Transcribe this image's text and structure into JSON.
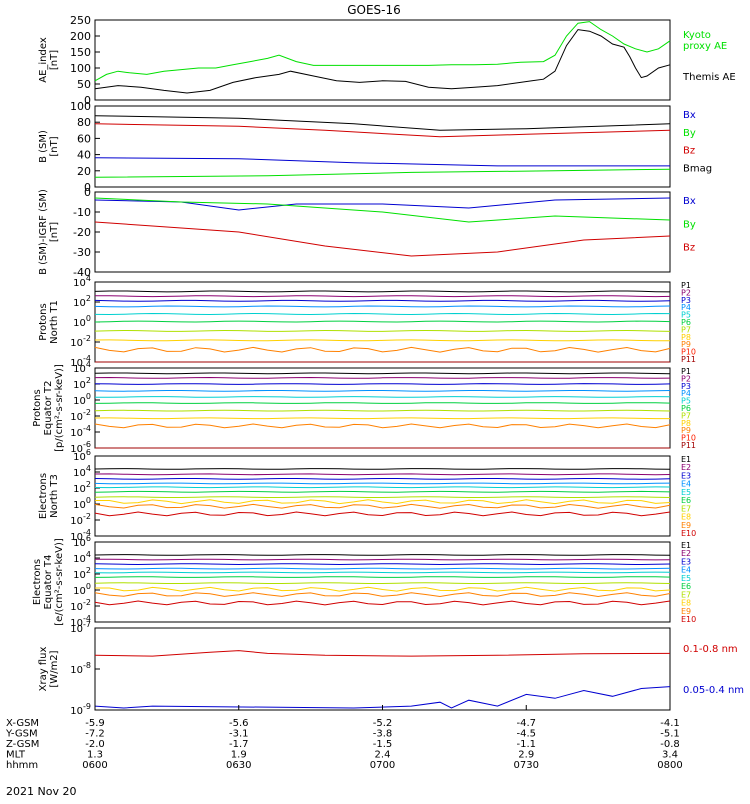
{
  "title": "GOES-16",
  "date_label": "2021 Nov 20",
  "colors": {
    "black": "#000000",
    "green": "#00e000",
    "red": "#d00000",
    "blue": "#0000d0"
  },
  "chart_data": [
    {
      "type": "line",
      "name": "ae",
      "ylabel_lines": [
        "AE_index",
        "[nT]"
      ],
      "yticks": [
        "250",
        "200",
        "150",
        "100",
        "50",
        "0"
      ],
      "ylim": [
        0,
        250
      ],
      "series": [
        {
          "name": "Kyoto proxy AE",
          "color": "#00e000",
          "label_lines": [
            "Kyoto",
            "proxy AE"
          ],
          "values": [
            [
              0,
              60
            ],
            [
              2,
              80
            ],
            [
              4,
              90
            ],
            [
              6,
              85
            ],
            [
              9,
              80
            ],
            [
              12,
              90
            ],
            [
              15,
              95
            ],
            [
              18,
              100
            ],
            [
              21,
              100
            ],
            [
              24,
              110
            ],
            [
              27,
              120
            ],
            [
              30,
              130
            ],
            [
              32,
              140
            ],
            [
              35,
              120
            ],
            [
              38,
              108
            ],
            [
              42,
              108
            ],
            [
              46,
              108
            ],
            [
              50,
              108
            ],
            [
              54,
              108
            ],
            [
              58,
              108
            ],
            [
              62,
              110
            ],
            [
              66,
              110
            ],
            [
              70,
              112
            ],
            [
              74,
              118
            ],
            [
              78,
              120
            ],
            [
              80,
              140
            ],
            [
              82,
              200
            ],
            [
              84,
              240
            ],
            [
              86,
              245
            ],
            [
              88,
              220
            ],
            [
              90,
              200
            ],
            [
              92,
              175
            ],
            [
              94,
              160
            ],
            [
              96,
              150
            ],
            [
              98,
              160
            ],
            [
              100,
              185
            ]
          ]
        },
        {
          "name": "Themis AE",
          "color": "#000000",
          "label_lines": [
            "Themis AE"
          ],
          "values": [
            [
              0,
              35
            ],
            [
              4,
              45
            ],
            [
              8,
              40
            ],
            [
              12,
              30
            ],
            [
              16,
              22
            ],
            [
              20,
              30
            ],
            [
              24,
              55
            ],
            [
              28,
              70
            ],
            [
              32,
              80
            ],
            [
              34,
              90
            ],
            [
              38,
              75
            ],
            [
              42,
              60
            ],
            [
              46,
              55
            ],
            [
              50,
              60
            ],
            [
              54,
              58
            ],
            [
              58,
              40
            ],
            [
              62,
              35
            ],
            [
              66,
              40
            ],
            [
              70,
              45
            ],
            [
              74,
              55
            ],
            [
              76,
              60
            ],
            [
              78,
              65
            ],
            [
              80,
              90
            ],
            [
              82,
              170
            ],
            [
              84,
              220
            ],
            [
              86,
              215
            ],
            [
              88,
              200
            ],
            [
              90,
              175
            ],
            [
              92,
              165
            ],
            [
              93,
              135
            ],
            [
              94,
              100
            ],
            [
              95,
              70
            ],
            [
              96,
              75
            ],
            [
              98,
              100
            ],
            [
              100,
              110
            ]
          ]
        }
      ]
    },
    {
      "type": "line",
      "name": "bsm",
      "ylabel_lines": [
        "B (SM)",
        "[nT]"
      ],
      "yticks": [
        "100",
        "80",
        "60",
        "40",
        "20",
        "0"
      ],
      "ylim": [
        0,
        100
      ],
      "series": [
        {
          "name": "Bx",
          "color": "#0000d0",
          "label_lines": [
            "Bx"
          ],
          "values": [
            [
              0,
              36
            ],
            [
              25,
              35
            ],
            [
              45,
              30
            ],
            [
              70,
              26
            ],
            [
              100,
              26
            ]
          ]
        },
        {
          "name": "By",
          "color": "#00e000",
          "label_lines": [
            "By"
          ],
          "values": [
            [
              0,
              12
            ],
            [
              30,
              14
            ],
            [
              55,
              18
            ],
            [
              80,
              20
            ],
            [
              100,
              22
            ]
          ]
        },
        {
          "name": "Bz",
          "color": "#d00000",
          "label_lines": [
            "Bz"
          ],
          "values": [
            [
              0,
              78
            ],
            [
              25,
              75
            ],
            [
              40,
              70
            ],
            [
              60,
              62
            ],
            [
              75,
              65
            ],
            [
              100,
              70
            ]
          ]
        },
        {
          "name": "Bmag",
          "color": "#000000",
          "label_lines": [
            "Bmag"
          ],
          "values": [
            [
              0,
              88
            ],
            [
              25,
              85
            ],
            [
              45,
              78
            ],
            [
              60,
              70
            ],
            [
              75,
              72
            ],
            [
              100,
              78
            ]
          ]
        }
      ]
    },
    {
      "type": "line",
      "name": "bigrf",
      "ylabel_lines": [
        "B (SM)-IGRF (SM)",
        "[nT]"
      ],
      "yticks": [
        "0",
        "-10",
        "-20",
        "-30",
        "-40"
      ],
      "ylim": [
        -40,
        0
      ],
      "series": [
        {
          "name": "Bx",
          "color": "#0000d0",
          "label_lines": [
            "Bx"
          ],
          "values": [
            [
              0,
              -4
            ],
            [
              15,
              -5
            ],
            [
              25,
              -9
            ],
            [
              35,
              -6
            ],
            [
              50,
              -6
            ],
            [
              65,
              -8
            ],
            [
              80,
              -4
            ],
            [
              100,
              -3
            ]
          ]
        },
        {
          "name": "By",
          "color": "#00e000",
          "label_lines": [
            "By"
          ],
          "values": [
            [
              0,
              -3
            ],
            [
              15,
              -5
            ],
            [
              30,
              -6
            ],
            [
              50,
              -10
            ],
            [
              65,
              -15
            ],
            [
              80,
              -12
            ],
            [
              100,
              -14
            ]
          ]
        },
        {
          "name": "Bz",
          "color": "#d00000",
          "label_lines": [
            "Bz"
          ],
          "values": [
            [
              0,
              -15
            ],
            [
              10,
              -17
            ],
            [
              25,
              -20
            ],
            [
              40,
              -27
            ],
            [
              55,
              -32
            ],
            [
              70,
              -30
            ],
            [
              85,
              -24
            ],
            [
              100,
              -22
            ]
          ]
        }
      ]
    },
    {
      "type": "line",
      "scale": "log",
      "name": "protons_t1",
      "ylabel_lines": [
        "Protons",
        "North T1"
      ],
      "yticks": [
        "10^4",
        "10^2",
        "10^0",
        "10^-2",
        "10^-4"
      ],
      "ylim": [
        -4.5,
        4
      ],
      "channels": [
        {
          "name": "P1",
          "color": "#000000",
          "level": 3.0
        },
        {
          "name": "P2",
          "color": "#8b0070",
          "level": 2.5
        },
        {
          "name": "P3",
          "color": "#0000d0",
          "level": 2.0
        },
        {
          "name": "P4",
          "color": "#0090ff",
          "level": 1.4
        },
        {
          "name": "P5",
          "color": "#00d0d0",
          "level": 0.6
        },
        {
          "name": "P6",
          "color": "#00d040",
          "level": -0.2
        },
        {
          "name": "P7",
          "color": "#b0e000",
          "level": -1.2
        },
        {
          "name": "P8",
          "color": "#ffd000",
          "level": -2.2
        },
        {
          "name": "P9",
          "color": "#ff8000",
          "level": -3.2
        },
        {
          "name": "P10",
          "color": "#ff2000",
          "level": -4.8
        },
        {
          "name": "P11",
          "color": "#a00000",
          "level": -5.0
        }
      ]
    },
    {
      "type": "line",
      "scale": "log",
      "name": "protons_t2",
      "ylabel_lines": [
        "Protons",
        "Equator T2",
        "[p/(cm²-s-sr-keV)]"
      ],
      "yticks": [
        "10^4",
        "10^2",
        "10^0",
        "10^-2",
        "10^-4",
        "10^-6"
      ],
      "ylim": [
        -6.5,
        4
      ],
      "channels": [
        {
          "name": "P1",
          "color": "#000000",
          "level": 3.3
        },
        {
          "name": "P2",
          "color": "#8b0070",
          "level": 2.7
        },
        {
          "name": "P3",
          "color": "#0000d0",
          "level": 1.9
        },
        {
          "name": "P4",
          "color": "#0090ff",
          "level": 1.0
        },
        {
          "name": "P5",
          "color": "#00d0d0",
          "level": 0.2
        },
        {
          "name": "P6",
          "color": "#00d040",
          "level": -0.6
        },
        {
          "name": "P7",
          "color": "#b0e000",
          "level": -1.6
        },
        {
          "name": "P8",
          "color": "#ffd000",
          "level": -2.6
        },
        {
          "name": "P9",
          "color": "#ff8000",
          "level": -3.6
        },
        {
          "name": "P10",
          "color": "#ff2000",
          "level": -7.0
        },
        {
          "name": "P11",
          "color": "#a00000",
          "level": -7.2
        }
      ]
    },
    {
      "type": "line",
      "scale": "log",
      "name": "electrons_t3",
      "ylabel_lines": [
        "Electrons",
        "North T3"
      ],
      "yticks": [
        "10^6",
        "10^4",
        "10^2",
        "10^0",
        "10^-2",
        "10^-4"
      ],
      "ylim": [
        -4.5,
        6
      ],
      "channels": [
        {
          "name": "E1",
          "color": "#000000",
          "level": 4.3
        },
        {
          "name": "E2",
          "color": "#8b0070",
          "level": 3.6
        },
        {
          "name": "E3",
          "color": "#0000d0",
          "level": 3.0
        },
        {
          "name": "E4",
          "color": "#0090ff",
          "level": 2.4
        },
        {
          "name": "E5",
          "color": "#00d0d0",
          "level": 1.9
        },
        {
          "name": "E6",
          "color": "#00d040",
          "level": 1.3
        },
        {
          "name": "E7",
          "color": "#b0e000",
          "level": 0.6
        },
        {
          "name": "E8",
          "color": "#ffd000",
          "level": 0.0
        },
        {
          "name": "E9",
          "color": "#ff8000",
          "level": -0.6
        },
        {
          "name": "E10",
          "color": "#d00000",
          "level": -1.6
        }
      ]
    },
    {
      "type": "line",
      "scale": "log",
      "name": "electrons_t4",
      "ylabel_lines": [
        "Electrons",
        "Equator T4",
        "[e/(cm²-s-sr-keV)]"
      ],
      "yticks": [
        "10^6",
        "10^4",
        "10^2",
        "10^0",
        "10^-2",
        "10^-4"
      ],
      "ylim": [
        -4.5,
        6
      ],
      "channels": [
        {
          "name": "E1",
          "color": "#000000",
          "level": 4.3
        },
        {
          "name": "E2",
          "color": "#8b0070",
          "level": 3.7
        },
        {
          "name": "E3",
          "color": "#0000d0",
          "level": 3.1
        },
        {
          "name": "E4",
          "color": "#0090ff",
          "level": 2.5
        },
        {
          "name": "E5",
          "color": "#00d0d0",
          "level": 2.0
        },
        {
          "name": "E6",
          "color": "#00d040",
          "level": 1.4
        },
        {
          "name": "E7",
          "color": "#b0e000",
          "level": 0.6
        },
        {
          "name": "E8",
          "color": "#ffd000",
          "level": -0.2
        },
        {
          "name": "E9",
          "color": "#ff8000",
          "level": -0.9
        },
        {
          "name": "E10",
          "color": "#d00000",
          "level": -2.0
        }
      ]
    },
    {
      "type": "line",
      "scale": "log",
      "name": "xray",
      "ylabel_lines": [
        "Xray flux",
        "[W/m2]"
      ],
      "yticks": [
        "10^-7",
        "10^-8",
        "10^-9"
      ],
      "ylim": [
        -9.1,
        -7
      ],
      "series": [
        {
          "name": "0.1-0.8 nm",
          "color": "#d00000",
          "label_lines": [
            "0.1-0.8 nm"
          ],
          "values": [
            [
              0,
              -7.7
            ],
            [
              10,
              -7.72
            ],
            [
              20,
              -7.62
            ],
            [
              25,
              -7.58
            ],
            [
              30,
              -7.65
            ],
            [
              40,
              -7.7
            ],
            [
              55,
              -7.72
            ],
            [
              70,
              -7.7
            ],
            [
              85,
              -7.66
            ],
            [
              100,
              -7.65
            ]
          ]
        },
        {
          "name": "0.05-0.4 nm",
          "color": "#0000d0",
          "label_lines": [
            "0.05-0.4 nm"
          ],
          "values": [
            [
              0,
              -9.0
            ],
            [
              5,
              -9.05
            ],
            [
              10,
              -9.0
            ],
            [
              45,
              -9.05
            ],
            [
              55,
              -9.0
            ],
            [
              60,
              -8.9
            ],
            [
              62,
              -9.05
            ],
            [
              65,
              -8.85
            ],
            [
              70,
              -9.0
            ],
            [
              75,
              -8.7
            ],
            [
              80,
              -8.8
            ],
            [
              85,
              -8.6
            ],
            [
              90,
              -8.75
            ],
            [
              95,
              -8.55
            ],
            [
              100,
              -8.5
            ]
          ]
        }
      ]
    }
  ],
  "xaxis": {
    "rows": [
      {
        "label": "X-GSM",
        "values": [
          "-5.9",
          "-5.6",
          "-5.2",
          "-4.7",
          "-4.1"
        ]
      },
      {
        "label": "Y-GSM",
        "values": [
          "-7.2",
          "-3.1",
          "-3.8",
          "-4.5",
          "-5.1"
        ]
      },
      {
        "label": "Z-GSM",
        "values": [
          "-2.0",
          "-1.7",
          "-1.5",
          "-1.1",
          "-0.8"
        ]
      },
      {
        "label": "MLT",
        "values": [
          "1.3",
          "1.9",
          "2.4",
          "2.9",
          "3.4"
        ]
      },
      {
        "label": "hhmm",
        "values": [
          "0600",
          "0630",
          "0700",
          "0730",
          "0800"
        ]
      }
    ]
  }
}
